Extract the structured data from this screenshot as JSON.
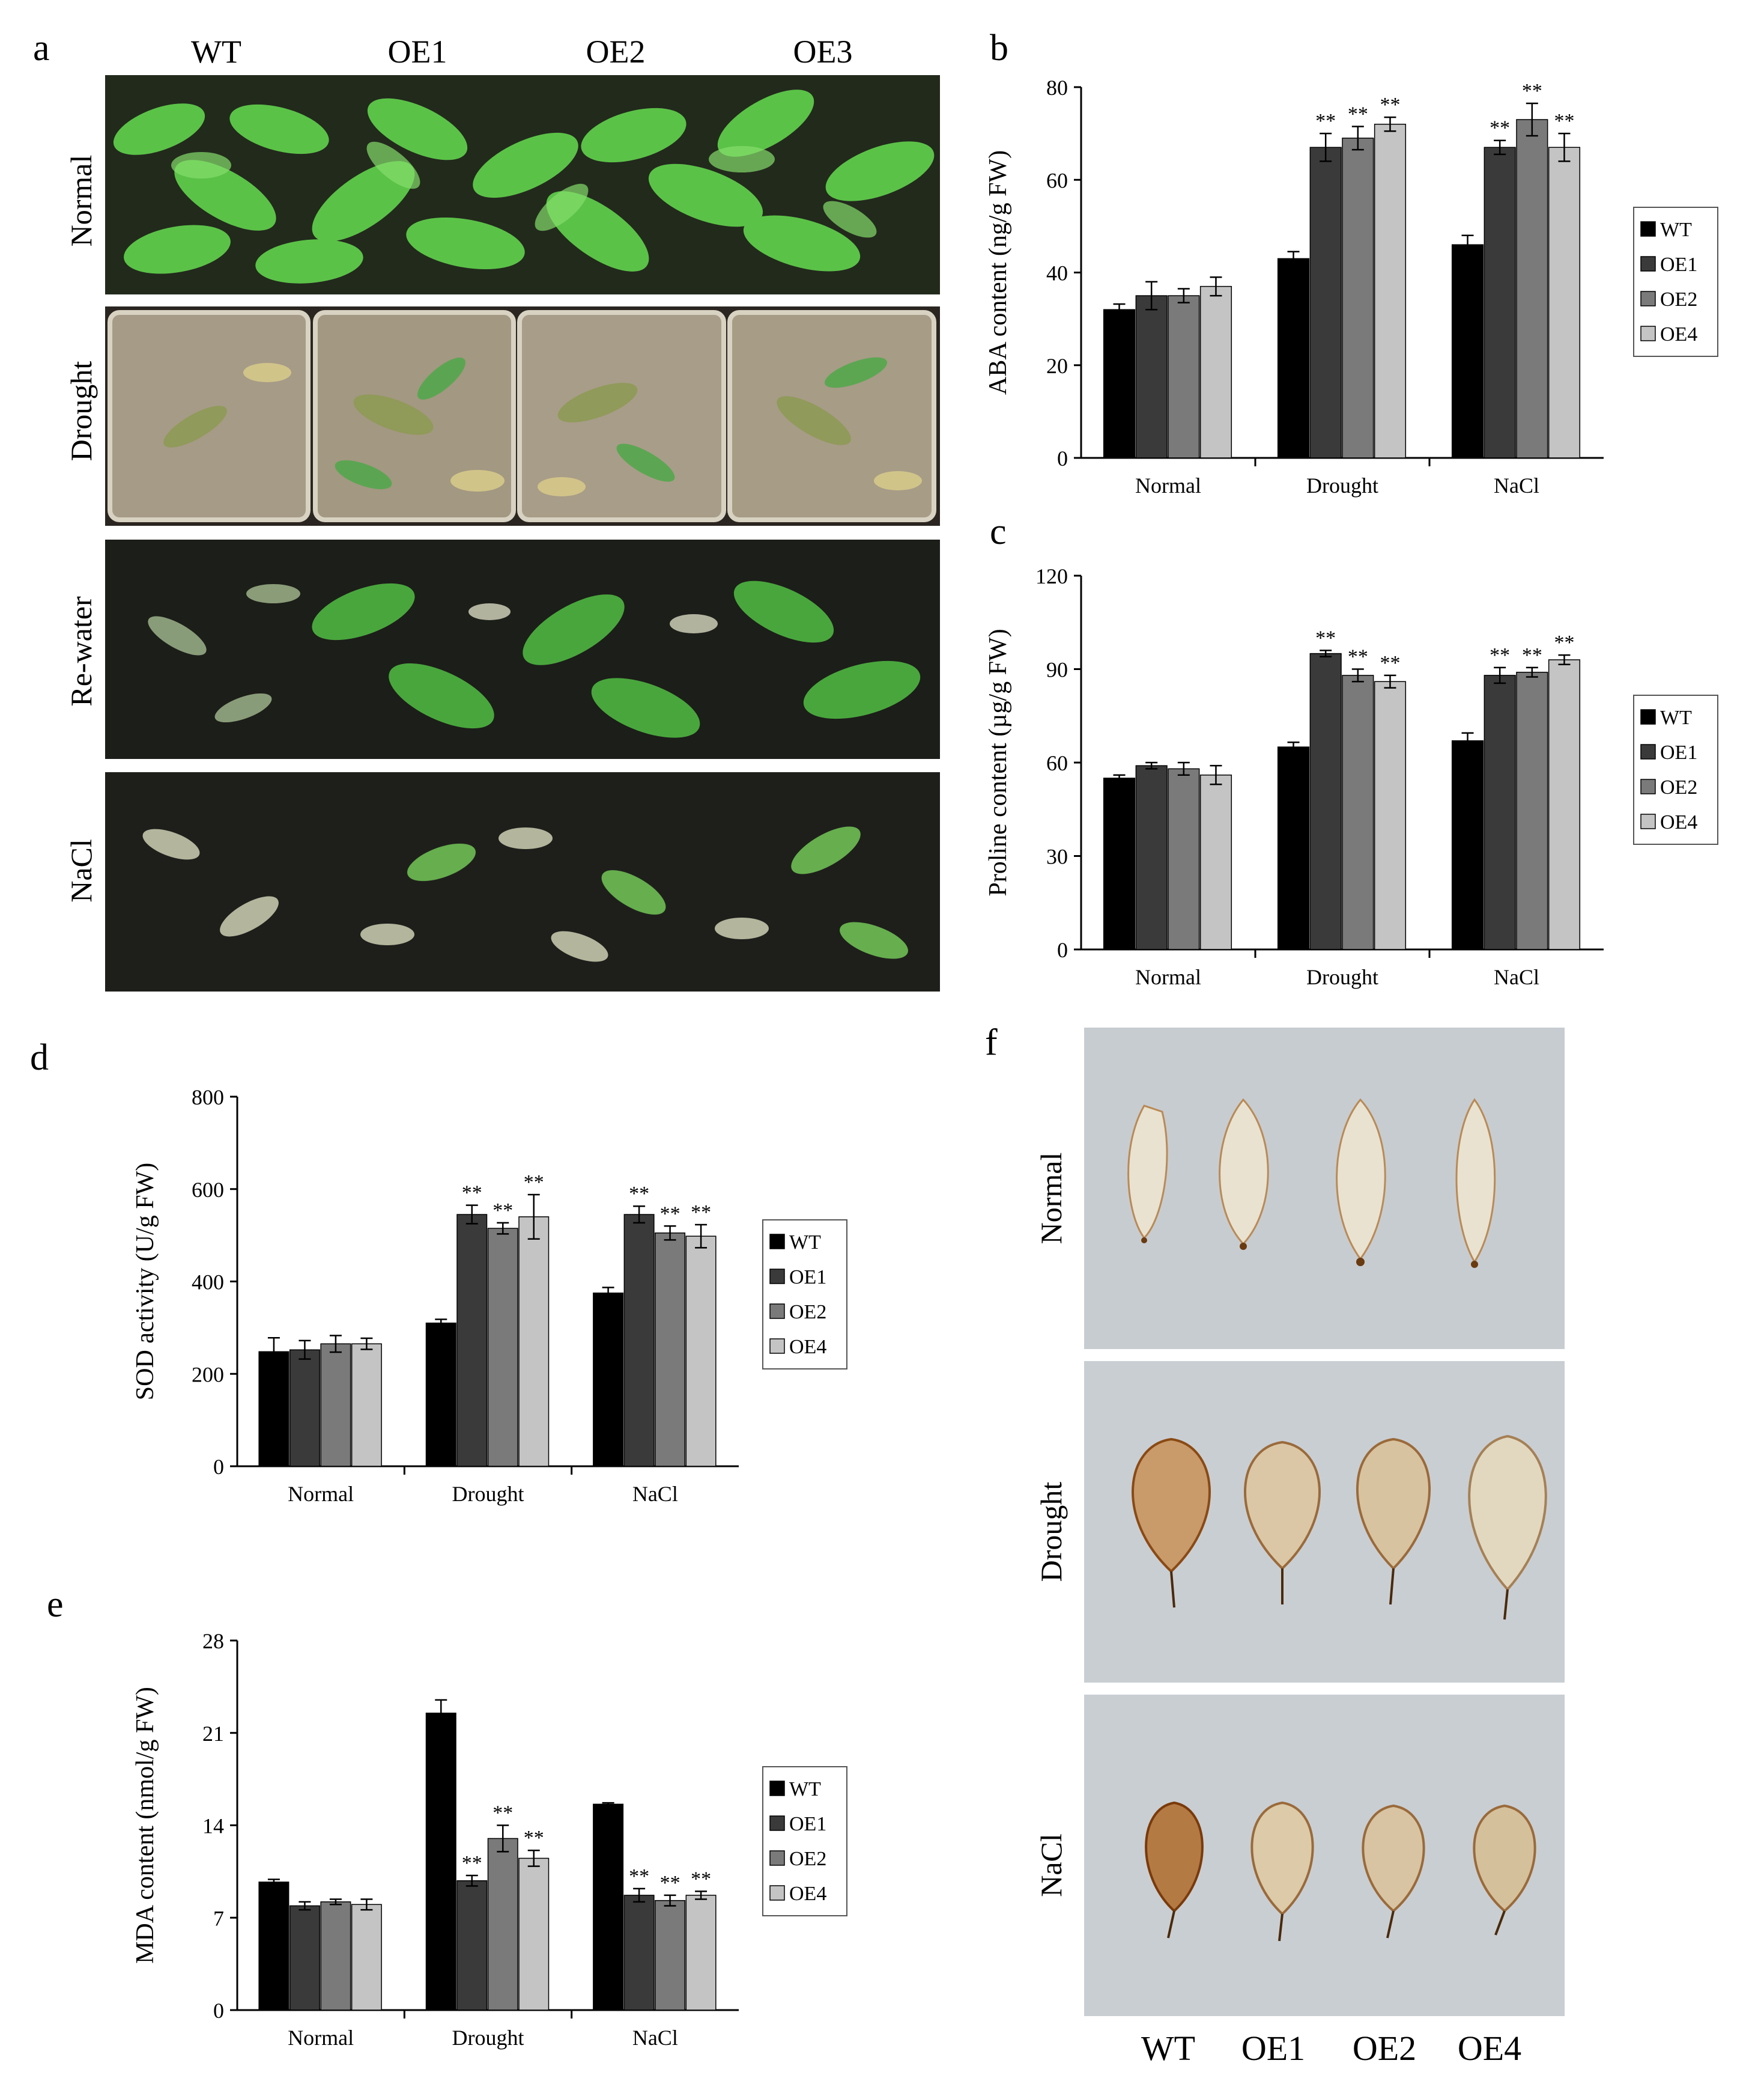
{
  "panels": {
    "a": {
      "label": "a",
      "columns": [
        "WT",
        "OE1",
        "OE2",
        "OE3"
      ],
      "rows": [
        "Normal",
        "Drought",
        "Re-water",
        "NaCl"
      ]
    },
    "f": {
      "label": "f",
      "columns": [
        "WT",
        "OE1",
        "OE2",
        "OE4"
      ],
      "rows": [
        "Normal",
        "Drought",
        "NaCl"
      ]
    }
  },
  "colors": {
    "WT": "#000000",
    "OE1": "#3a3a3a",
    "OE2": "#7a7a7a",
    "OE4": "#c4c4c4",
    "soil": "#1a1a18",
    "leaf_green": "#5cc24a",
    "leaf_bg": "#c9cdd1",
    "stain": "#9a5a22"
  },
  "chart_data": [
    {
      "id": "b",
      "panel_label": "b",
      "type": "bar",
      "ylabel": "ABA content (ng/g FW)",
      "categories": [
        "Normal",
        "Drought",
        "NaCl"
      ],
      "ylim": [
        0,
        80
      ],
      "yticks": [
        "0",
        "20",
        "40",
        "60",
        "80"
      ],
      "legend_position": "right",
      "series": [
        {
          "name": "WT",
          "values": [
            32,
            43,
            46
          ],
          "errors": [
            1.2,
            1.5,
            2.0
          ],
          "sig": [
            "",
            "",
            ""
          ]
        },
        {
          "name": "OE1",
          "values": [
            35,
            67,
            67
          ],
          "errors": [
            3.0,
            3.0,
            1.5
          ],
          "sig": [
            "",
            "**",
            "**"
          ]
        },
        {
          "name": "OE2",
          "values": [
            35,
            69,
            73
          ],
          "errors": [
            1.5,
            2.5,
            3.5
          ],
          "sig": [
            "",
            "**",
            "**"
          ]
        },
        {
          "name": "OE4",
          "values": [
            37,
            72,
            67
          ],
          "errors": [
            2.0,
            1.5,
            3.0
          ],
          "sig": [
            "",
            "**",
            "**"
          ]
        }
      ]
    },
    {
      "id": "c",
      "panel_label": "c",
      "type": "bar",
      "ylabel": "Proline content (µg/g FW)",
      "categories": [
        "Normal",
        "Drought",
        "NaCl"
      ],
      "ylim": [
        0,
        120
      ],
      "yticks": [
        "0",
        "30",
        "60",
        "90",
        "120"
      ],
      "legend_position": "right",
      "series": [
        {
          "name": "WT",
          "values": [
            55,
            65,
            67
          ],
          "errors": [
            1.0,
            1.5,
            2.5
          ],
          "sig": [
            "",
            "",
            ""
          ]
        },
        {
          "name": "OE1",
          "values": [
            59,
            95,
            88
          ],
          "errors": [
            1.0,
            1.0,
            2.5
          ],
          "sig": [
            "",
            "**",
            "**"
          ]
        },
        {
          "name": "OE2",
          "values": [
            58,
            88,
            89
          ],
          "errors": [
            2.0,
            2.0,
            1.5
          ],
          "sig": [
            "",
            "**",
            "**"
          ]
        },
        {
          "name": "OE4",
          "values": [
            56,
            86,
            93
          ],
          "errors": [
            3.0,
            2.0,
            1.5
          ],
          "sig": [
            "",
            "**",
            "**"
          ]
        }
      ]
    },
    {
      "id": "d",
      "panel_label": "d",
      "type": "bar",
      "ylabel": "SOD activity (U/g FW)",
      "categories": [
        "Normal",
        "Drought",
        "NaCl"
      ],
      "ylim": [
        0,
        800
      ],
      "yticks": [
        "0",
        "200",
        "400",
        "600",
        "800"
      ],
      "legend_position": "right",
      "series": [
        {
          "name": "WT",
          "values": [
            248,
            310,
            375
          ],
          "errors": [
            30,
            8,
            12
          ],
          "sig": [
            "",
            "",
            ""
          ]
        },
        {
          "name": "OE1",
          "values": [
            252,
            545,
            545
          ],
          "errors": [
            20,
            20,
            18
          ],
          "sig": [
            "",
            "**",
            "**"
          ]
        },
        {
          "name": "OE2",
          "values": [
            265,
            515,
            505
          ],
          "errors": [
            18,
            12,
            15
          ],
          "sig": [
            "",
            "**",
            "**"
          ]
        },
        {
          "name": "OE4",
          "values": [
            265,
            540,
            498
          ],
          "errors": [
            12,
            48,
            25
          ],
          "sig": [
            "",
            "**",
            "**"
          ]
        }
      ]
    },
    {
      "id": "e",
      "panel_label": "e",
      "type": "bar",
      "ylabel": "MDA content (nmol/g FW)",
      "categories": [
        "Normal",
        "Drought",
        "NaCl"
      ],
      "ylim": [
        0,
        28
      ],
      "yticks": [
        "0",
        "7",
        "14",
        "21",
        "28"
      ],
      "legend_position": "right",
      "series": [
        {
          "name": "WT",
          "values": [
            9.7,
            22.5,
            15.6
          ],
          "errors": [
            0.2,
            1.0,
            0.1
          ],
          "sig": [
            "",
            "",
            ""
          ]
        },
        {
          "name": "OE1",
          "values": [
            7.9,
            9.8,
            8.7
          ],
          "errors": [
            0.3,
            0.4,
            0.5
          ],
          "sig": [
            "",
            "**",
            "**"
          ]
        },
        {
          "name": "OE2",
          "values": [
            8.2,
            13.0,
            8.3
          ],
          "errors": [
            0.2,
            1.0,
            0.4
          ],
          "sig": [
            "",
            "**",
            "**"
          ]
        },
        {
          "name": "OE4",
          "values": [
            8.0,
            11.5,
            8.7
          ],
          "errors": [
            0.4,
            0.6,
            0.3
          ],
          "sig": [
            "",
            "**",
            "**"
          ]
        }
      ]
    }
  ]
}
